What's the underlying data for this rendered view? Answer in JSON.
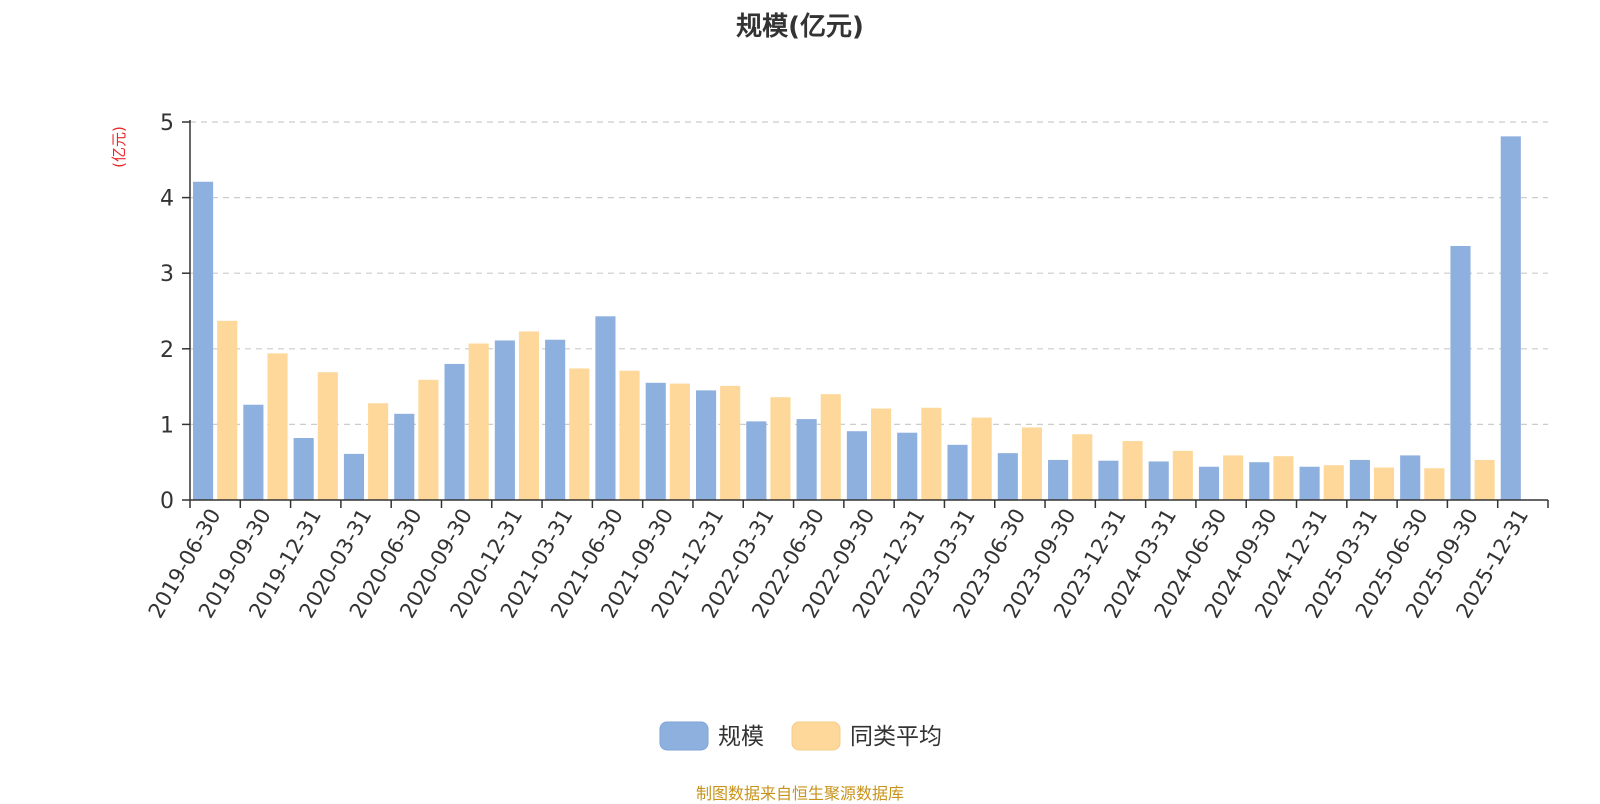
{
  "chart_data": {
    "type": "bar",
    "title": "规模(亿元)",
    "ylabel": "(亿元)",
    "xlabel": "",
    "ylim": [
      0,
      5
    ],
    "yticks": [
      0,
      1,
      2,
      3,
      4,
      5
    ],
    "grid": true,
    "legend_position": "bottom-center",
    "categories": [
      "2019-06-30",
      "2019-09-30",
      "2019-12-31",
      "2020-03-31",
      "2020-06-30",
      "2020-09-30",
      "2020-12-31",
      "2021-03-31",
      "2021-06-30",
      "2021-09-30",
      "2021-12-31",
      "2022-03-31",
      "2022-06-30",
      "2022-09-30",
      "2022-12-31",
      "2023-03-31",
      "2023-06-30",
      "2023-09-30",
      "2023-12-31",
      "2024-03-31",
      "2024-06-30",
      "2024-09-30",
      "2024-12-31",
      "2025-03-31",
      "2025-06-30",
      "2025-09-30",
      "2025-12-31"
    ],
    "series": [
      {
        "name": "规模",
        "color": "#8eb0de",
        "values": [
          4.21,
          1.26,
          0.82,
          0.61,
          1.14,
          1.8,
          2.11,
          2.12,
          2.43,
          1.55,
          1.45,
          1.04,
          1.07,
          0.91,
          0.89,
          0.73,
          0.62,
          0.53,
          0.52,
          0.51,
          0.44,
          0.5,
          0.44,
          0.53,
          0.59,
          3.36,
          4.81
        ]
      },
      {
        "name": "同类平均",
        "color": "#fed89a",
        "values": [
          2.37,
          1.94,
          1.69,
          1.28,
          1.59,
          2.07,
          2.23,
          1.74,
          1.71,
          1.54,
          1.51,
          1.36,
          1.4,
          1.21,
          1.22,
          1.09,
          0.96,
          0.87,
          0.78,
          0.65,
          0.59,
          0.58,
          0.46,
          0.43,
          0.42,
          0.53,
          null
        ]
      }
    ]
  },
  "source_note": "制图数据来自恒生聚源数据库"
}
